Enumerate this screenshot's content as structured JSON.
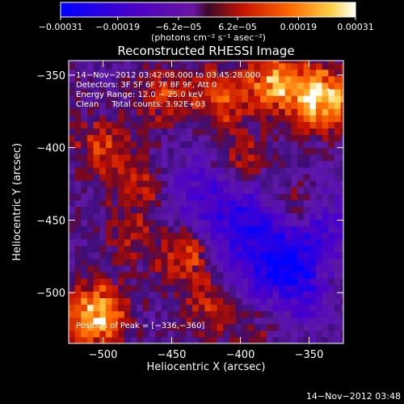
{
  "chart_data": {
    "type": "heatmap",
    "title": "Reconstructed RHESSI Image",
    "xlabel": "Heliocentric X (arcsec)",
    "ylabel": "Heliocentric Y (arcsec)",
    "xlim": [
      -525,
      -325
    ],
    "ylim": [
      -535,
      -340
    ],
    "x_ticks": [
      -500,
      -450,
      -400,
      -350
    ],
    "x_tick_labels": [
      "−500",
      "−450",
      "−400",
      "−350"
    ],
    "y_ticks": [
      -350,
      -400,
      -450,
      -500
    ],
    "y_tick_labels": [
      "−350",
      "−400",
      "−450",
      "−500"
    ],
    "colorbar": {
      "range": [
        -0.00031,
        0.00031
      ],
      "ticks": [
        -0.00031,
        -0.00019,
        -6.2e-05,
        6.2e-05,
        0.00019,
        0.00031
      ],
      "tick_labels": [
        "−0.00031",
        "−0.00019",
        "−6.2e−05",
        "6.2e−05",
        "0.00019",
        "0.00031"
      ],
      "units": "(photons cm⁻² s⁻¹ asec⁻²)"
    },
    "annotations": [
      "14−Nov−2012 03:42:08.000 to 03:45:28.000",
      "Detectors: 3F 5F 6F 7F 8F 9F, Att 0",
      "Energy Range: 12.0 − 25.0 keV",
      "Clean     Total counts: 3.92E+03"
    ],
    "peak_label": "Position of Peak = [−336,−360]",
    "peak": [
      -336,
      -360
    ],
    "timestamp": "14−Nov−2012 03:48",
    "grid": false,
    "hot_regions": [
      {
        "x": -505,
        "y": -515,
        "level": 0.00029
      },
      {
        "x": -340,
        "y": -365,
        "level": 0.00031
      },
      {
        "x": -375,
        "y": -355,
        "level": 0.00024
      },
      {
        "x": -440,
        "y": -475,
        "level": 0.00017
      },
      {
        "x": -360,
        "y": -440,
        "level": 0.00015
      },
      {
        "x": -415,
        "y": -365,
        "level": 0.00016
      },
      {
        "x": -455,
        "y": -365,
        "level": 0.00012
      },
      {
        "x": -500,
        "y": -400,
        "level": 0.00013
      },
      {
        "x": -470,
        "y": -425,
        "level": 0.00011
      },
      {
        "x": -400,
        "y": -410,
        "level": 0.00012
      },
      {
        "x": -420,
        "y": -510,
        "level": 0.00011
      },
      {
        "x": -380,
        "y": -520,
        "level": 9e-05
      },
      {
        "x": -330,
        "y": -485,
        "level": 8e-05
      },
      {
        "x": -480,
        "y": -460,
        "level": 8e-05
      }
    ],
    "cold_regions": [
      {
        "x": -365,
        "y": -490,
        "level": -0.00024
      },
      {
        "x": -395,
        "y": -455,
        "level": -0.00018
      },
      {
        "x": -430,
        "y": -430,
        "level": -0.00012
      },
      {
        "x": -345,
        "y": -455,
        "level": -0.00014
      }
    ]
  }
}
